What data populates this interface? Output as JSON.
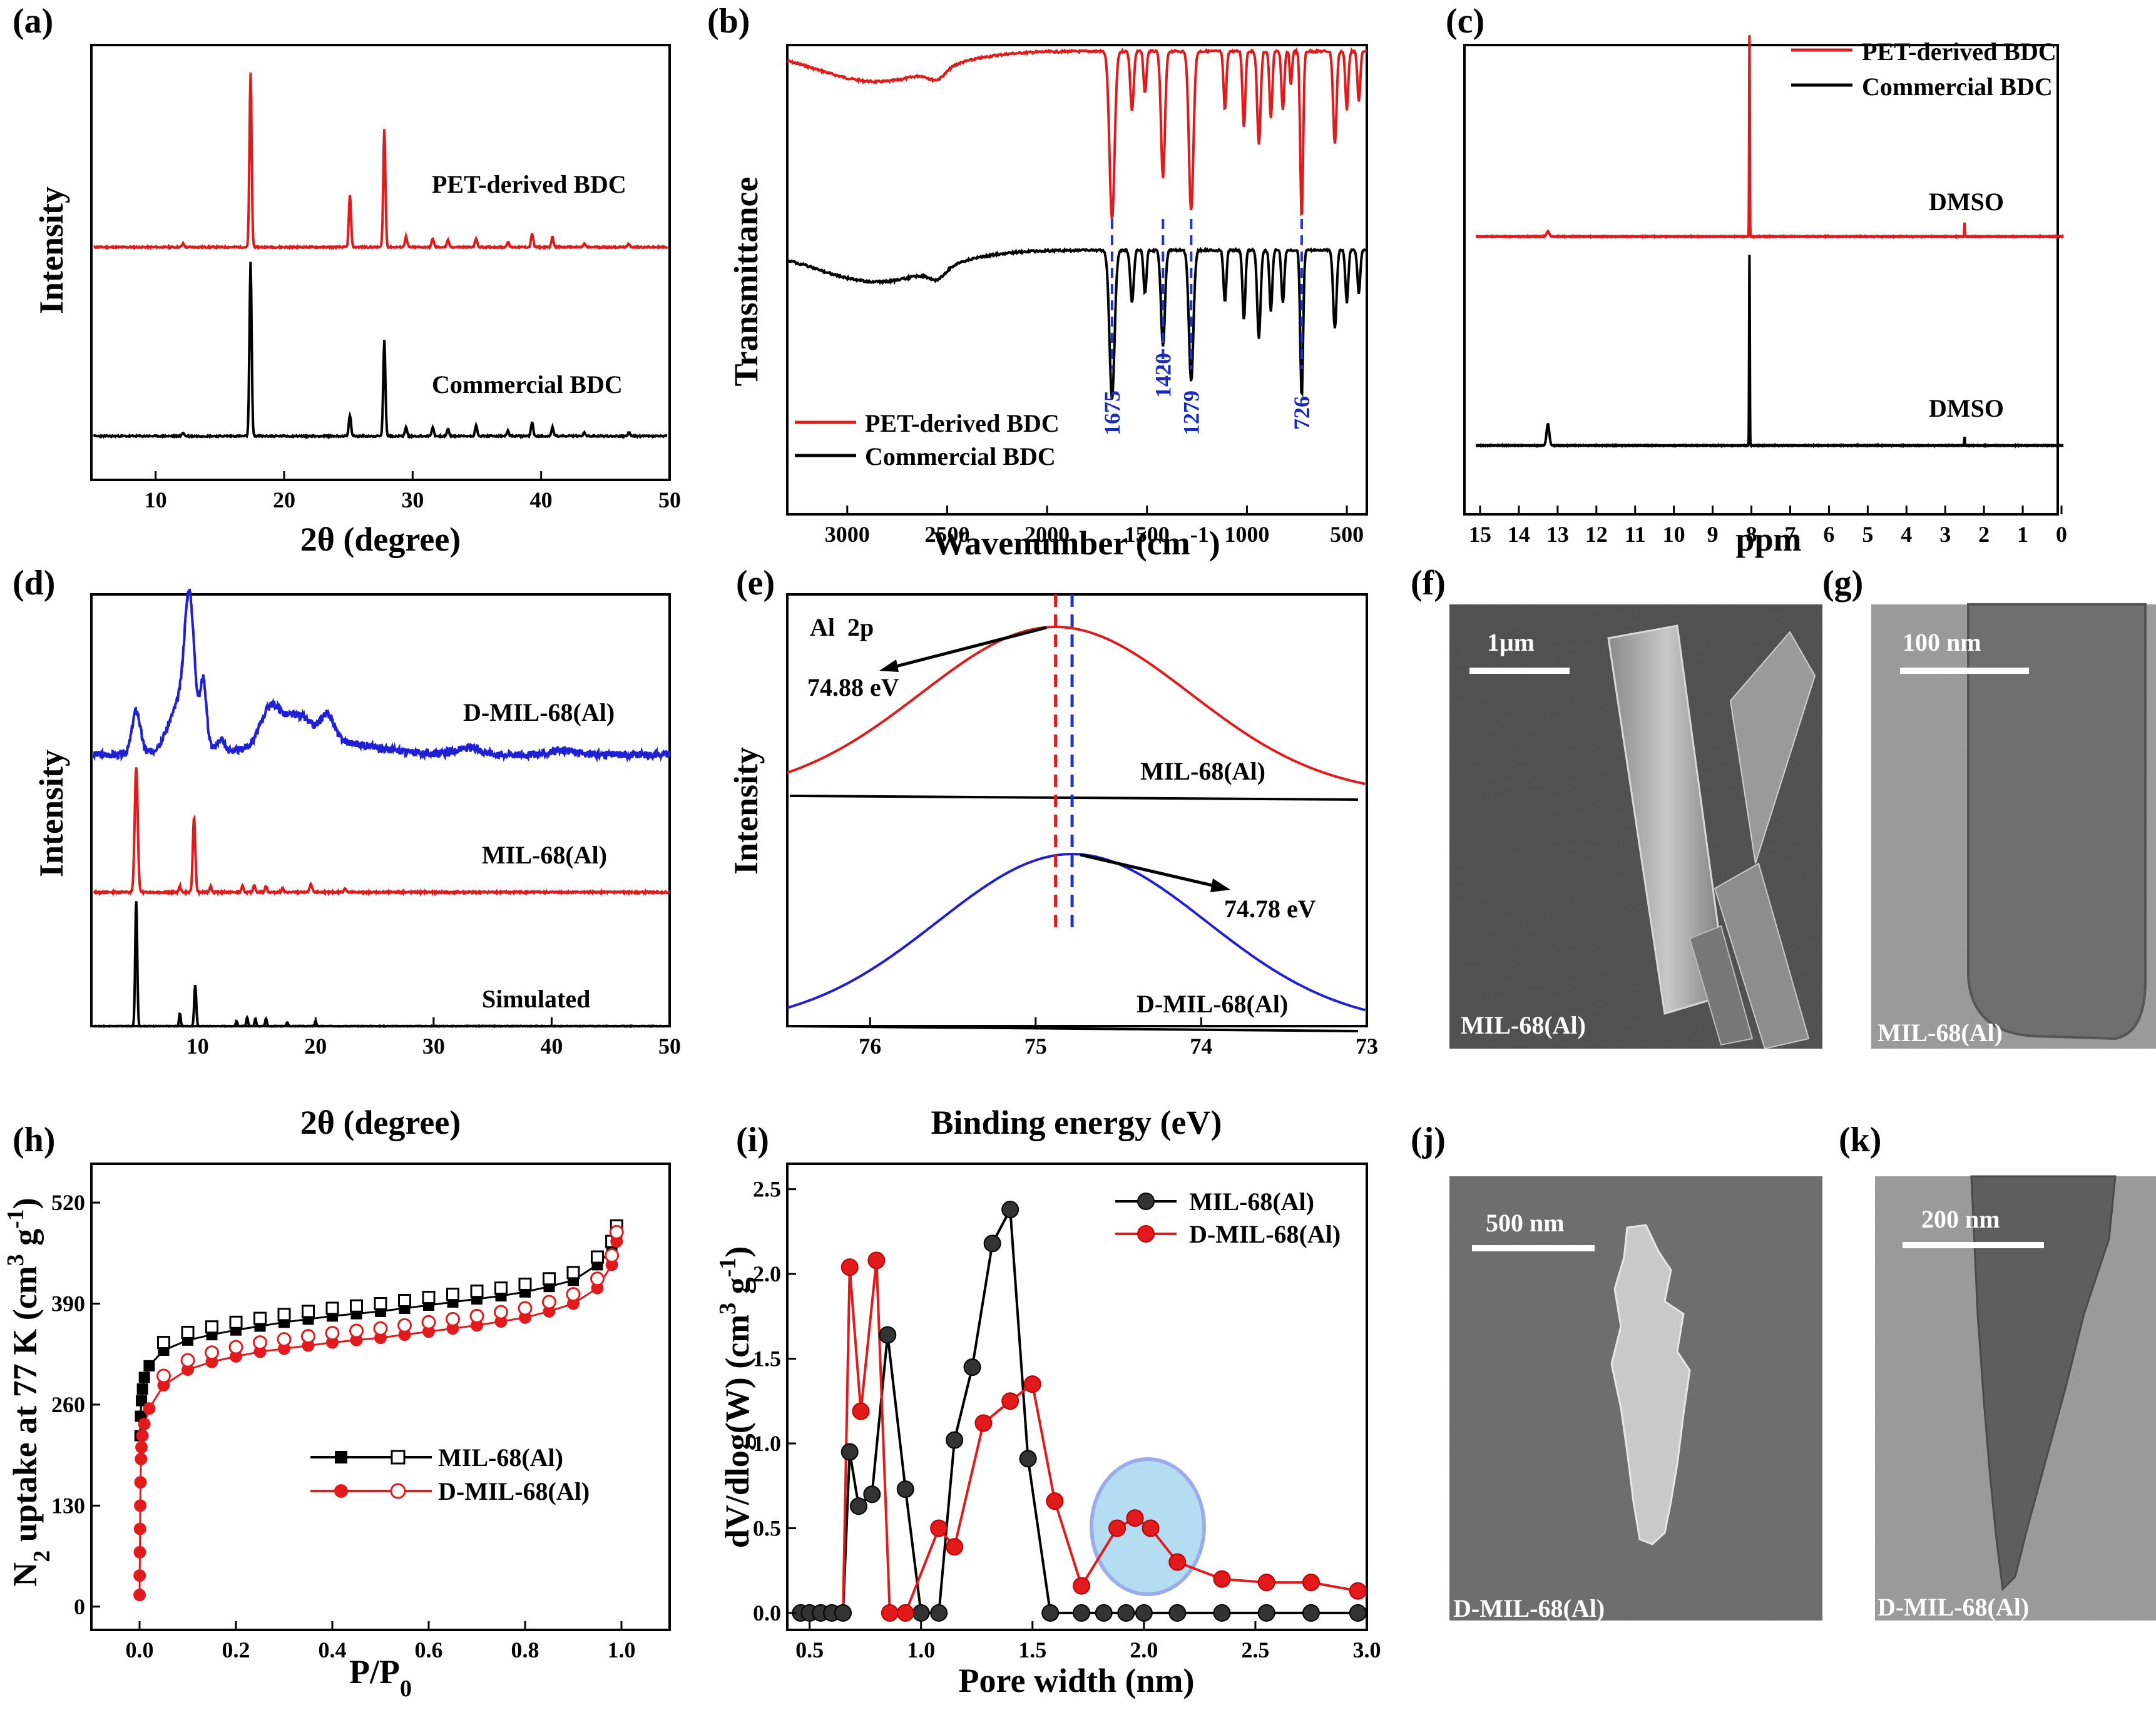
{
  "colors": {
    "red": "#e31a1c",
    "black": "#000000",
    "blue": "#1f1fd6",
    "dash_blue": "#2233cc",
    "tick_blue": "#1a2bb8",
    "highlight": "#a8d8f0"
  },
  "charts": [
    {
      "id": "a",
      "panel_label": "(a)",
      "type": "line",
      "xlabel": "2θ (degree)",
      "ylabel": "Intensity",
      "xlim": [
        5,
        50
      ],
      "xticks": [
        10,
        20,
        30,
        40,
        50
      ],
      "series": [
        {
          "name": "PET-derived BDC",
          "color": "#e31a1c",
          "peaks": [
            [
              12.0,
              0.02
            ],
            [
              17.3,
              1.0
            ],
            [
              25.1,
              0.3
            ],
            [
              27.8,
              0.68
            ],
            [
              29.5,
              0.06
            ],
            [
              31.6,
              0.05
            ],
            [
              32.8,
              0.04
            ],
            [
              35.0,
              0.05
            ],
            [
              37.5,
              0.03
            ],
            [
              39.4,
              0.08
            ],
            [
              41.0,
              0.06
            ],
            [
              43.5,
              0.02
            ],
            [
              47.0,
              0.02
            ]
          ]
        },
        {
          "name": "Commercial BDC",
          "color": "#000000",
          "peaks": [
            [
              12.0,
              0.02
            ],
            [
              17.3,
              1.0
            ],
            [
              25.1,
              0.12
            ],
            [
              27.8,
              0.55
            ],
            [
              29.5,
              0.05
            ],
            [
              31.6,
              0.05
            ],
            [
              32.8,
              0.04
            ],
            [
              35.0,
              0.06
            ],
            [
              37.5,
              0.03
            ],
            [
              39.4,
              0.08
            ],
            [
              41.0,
              0.05
            ],
            [
              43.5,
              0.02
            ],
            [
              47.0,
              0.02
            ]
          ]
        }
      ],
      "annotations": [
        "PET-derived BDC",
        "Commercial BDC"
      ]
    },
    {
      "id": "b",
      "panel_label": "(b)",
      "type": "line",
      "xlabel": "Wavenumber (cm-1)",
      "ylabel": "Transmittance",
      "xlim": [
        3300,
        400
      ],
      "xticks": [
        3000,
        2500,
        2000,
        1500,
        1000,
        500
      ],
      "marked_bands": [
        "1675",
        "1420",
        "1279",
        "726"
      ],
      "legend": [
        "PET-derived BDC",
        "Commercial BDC"
      ],
      "legend_position": "bottom-left"
    },
    {
      "id": "c",
      "panel_label": "(c)",
      "type": "line",
      "xlabel": "ppm",
      "xlim": [
        15,
        0
      ],
      "xticks": [
        15,
        14,
        13,
        12,
        11,
        10,
        9,
        8,
        7,
        6,
        5,
        4,
        3,
        2,
        1,
        0
      ],
      "peaks": [
        [
          13.3,
          "small"
        ],
        [
          8.05,
          "strong"
        ],
        [
          2.5,
          "DMSO"
        ]
      ],
      "annotations": [
        "DMSO",
        "DMSO"
      ],
      "legend": [
        "PET-derived BDC",
        "Commercial BDC"
      ],
      "legend_position": "top-right"
    },
    {
      "id": "d",
      "panel_label": "(d)",
      "type": "line",
      "xlabel": "2θ (degree)",
      "ylabel": "Intensity",
      "xlim": [
        1,
        50
      ],
      "xticks": [
        10,
        20,
        30,
        40,
        50
      ],
      "series": [
        {
          "name": "D-MIL-68(Al)",
          "color": "#1f1fd6"
        },
        {
          "name": "MIL-68(Al)",
          "color": "#e31a1c"
        },
        {
          "name": "Simulated",
          "color": "#000000"
        }
      ],
      "annotations": [
        "D-MIL-68(Al)",
        "MIL-68(Al)",
        "Simulated"
      ]
    },
    {
      "id": "e",
      "panel_label": "(e)",
      "type": "line",
      "xlabel": "Binding energy (eV)",
      "ylabel": "Intensity",
      "xlim": [
        76.5,
        73
      ],
      "xticks": [
        76,
        75,
        74,
        73
      ],
      "series": [
        {
          "name": "MIL-68(Al)",
          "color": "#e31a1c",
          "center": 74.88
        },
        {
          "name": "D-MIL-68(Al)",
          "color": "#1f1fd6",
          "center": 74.78
        }
      ],
      "annotations": [
        "Al  2p",
        "74.88 eV",
        "74.78 eV",
        "MIL-68(Al)",
        "D-MIL-68(Al)"
      ]
    },
    {
      "id": "h",
      "panel_label": "(h)",
      "type": "scatter",
      "xlabel": "P/P0",
      "ylabel": "N2 uptake at 77 K (cm3 g-1)",
      "xlim": [
        -0.1,
        1.1
      ],
      "ylim": [
        -30,
        570
      ],
      "xticks": [
        0.0,
        0.2,
        0.4,
        0.6,
        0.8,
        1.0
      ],
      "yticks": [
        0,
        130,
        260,
        390,
        520
      ],
      "series": [
        {
          "name": "MIL-68(Al)",
          "color": "#000000",
          "x": [
            0.001,
            0.002,
            0.004,
            0.006,
            0.01,
            0.02,
            0.05,
            0.1,
            0.15,
            0.2,
            0.25,
            0.3,
            0.35,
            0.4,
            0.45,
            0.5,
            0.55,
            0.6,
            0.65,
            0.7,
            0.75,
            0.8,
            0.85,
            0.9,
            0.95,
            0.98,
            0.99
          ],
          "y": [
            220,
            245,
            265,
            280,
            295,
            310,
            330,
            343,
            350,
            356,
            361,
            366,
            370,
            374,
            377,
            380,
            384,
            388,
            392,
            396,
            400,
            405,
            412,
            420,
            440,
            460,
            480
          ]
        },
        {
          "name": "D-MIL-68(Al)",
          "color": "#e31a1c",
          "x": [
            0.0001,
            0.0003,
            0.0006,
            0.001,
            0.0015,
            0.002,
            0.003,
            0.004,
            0.006,
            0.01,
            0.02,
            0.05,
            0.1,
            0.15,
            0.2,
            0.25,
            0.3,
            0.35,
            0.4,
            0.45,
            0.5,
            0.55,
            0.6,
            0.65,
            0.7,
            0.75,
            0.8,
            0.85,
            0.9,
            0.95,
            0.98,
            0.99
          ],
          "y": [
            15,
            40,
            70,
            100,
            130,
            160,
            190,
            205,
            220,
            235,
            255,
            285,
            305,
            315,
            322,
            328,
            332,
            336,
            340,
            343,
            346,
            350,
            354,
            358,
            362,
            367,
            372,
            380,
            390,
            410,
            440,
            470
          ]
        }
      ],
      "legend_position": "bottom-right"
    },
    {
      "id": "i",
      "panel_label": "(i)",
      "type": "line",
      "xlabel": "Pore width (nm)",
      "ylabel": "dV/dlog(W) (cm3 g-1)",
      "xlim": [
        0.4,
        3.0
      ],
      "ylim": [
        -0.1,
        2.65
      ],
      "xticks": [
        0.5,
        1.0,
        1.5,
        2.0,
        2.5,
        3.0
      ],
      "yticks": [
        0.0,
        0.5,
        1.0,
        1.5,
        2.0,
        2.5
      ],
      "series": [
        {
          "name": "MIL-68(Al)",
          "color": "#000000",
          "x": [
            0.46,
            0.5,
            0.55,
            0.6,
            0.65,
            0.68,
            0.72,
            0.78,
            0.85,
            0.93,
            1.0,
            1.08,
            1.15,
            1.23,
            1.32,
            1.4,
            1.48,
            1.58,
            1.72,
            1.82,
            1.92,
            2.0,
            2.15,
            2.35,
            2.55,
            2.75,
            2.96
          ],
          "y": [
            0,
            0,
            0,
            0,
            0,
            0.95,
            0.63,
            0.7,
            1.64,
            0.73,
            0,
            0,
            1.02,
            1.45,
            2.18,
            2.38,
            0.91,
            0,
            0,
            0,
            0,
            0,
            0,
            0,
            0,
            0,
            0
          ]
        },
        {
          "name": "D-MIL-68(Al)",
          "color": "#e31a1c",
          "x": [
            0.68,
            0.73,
            0.8,
            0.86,
            0.93,
            1.08,
            1.15,
            1.28,
            1.4,
            1.5,
            1.6,
            1.72,
            1.88,
            1.96,
            2.03,
            2.15,
            2.35,
            2.55,
            2.75,
            2.96
          ],
          "y": [
            2.04,
            1.19,
            2.08,
            0,
            0,
            0.5,
            0.39,
            1.12,
            1.25,
            1.35,
            0.66,
            0.16,
            0.5,
            0.56,
            0.5,
            0.3,
            0.2,
            0.18,
            0.18,
            0.13
          ]
        }
      ],
      "legend_position": "top-right"
    }
  ],
  "images": [
    {
      "id": "f",
      "panel_label": "(f)",
      "scale": "1μm",
      "caption": "MIL-68(Al)"
    },
    {
      "id": "g",
      "panel_label": "(g)",
      "scale": "100 nm",
      "caption": "MIL-68(Al)"
    },
    {
      "id": "j",
      "panel_label": "(j)",
      "scale": "500 nm",
      "caption": "D-MIL-68(Al)"
    },
    {
      "id": "k",
      "panel_label": "(k)",
      "scale": "200 nm",
      "caption": "D-MIL-68(Al)"
    }
  ]
}
